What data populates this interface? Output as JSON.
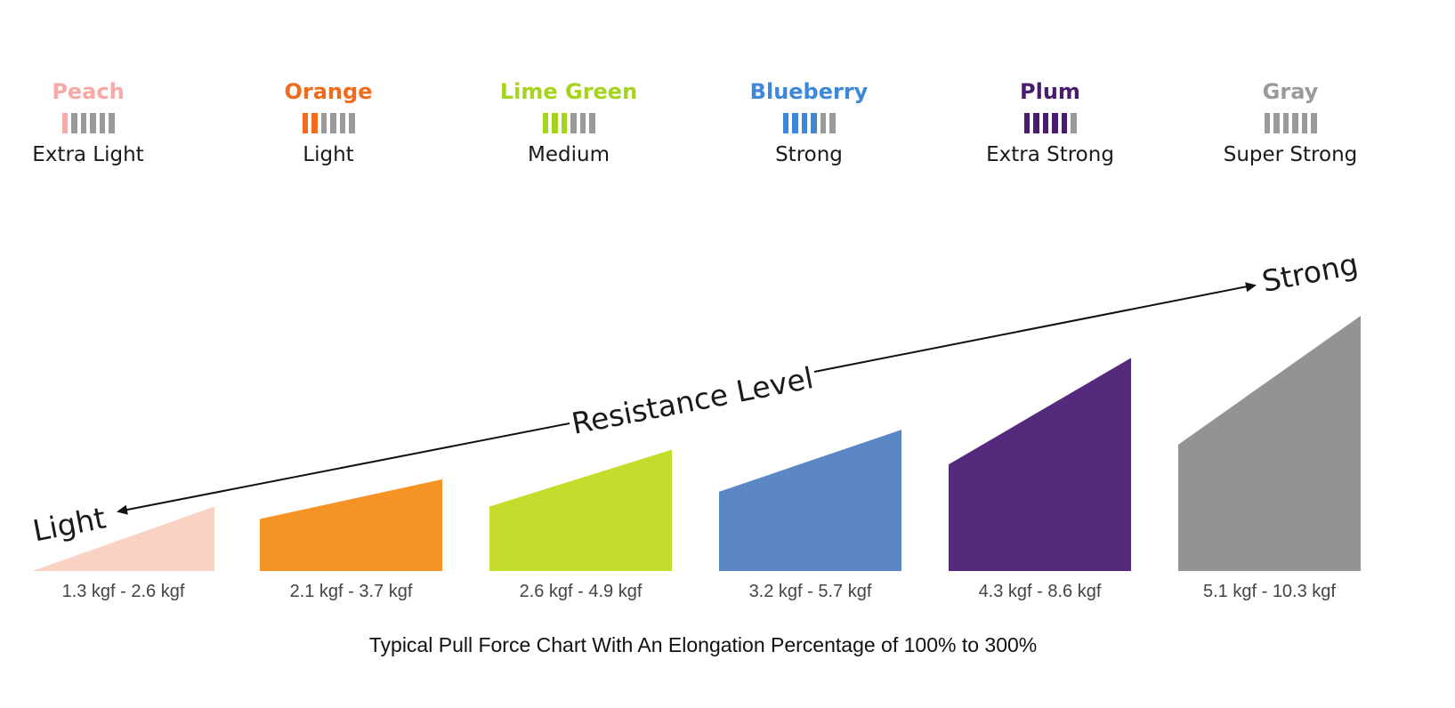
{
  "chart_data": {
    "type": "bar",
    "title": "",
    "caption": "Typical Pull Force Chart With An Elongation Percentage of 100% to 300%",
    "unit": "kgf",
    "axis_label": "Resistance Level",
    "axis_start_label": "Light",
    "axis_end_label": "Strong",
    "ylim": [
      0,
      10.3
    ],
    "grid": false,
    "legend_position": "top",
    "bars_total": 6,
    "categories": [
      "Extra Light",
      "Light",
      "Medium",
      "Strong",
      "Extra Strong",
      "Super Strong"
    ],
    "series": [
      {
        "color_name": "Peach",
        "level": "Extra Light",
        "range_label": "1.3 kgf - 2.6 kgf",
        "min": 1.3,
        "max": 2.6,
        "filled_bars": 1,
        "text_color": "#f7aaa5",
        "bar_color": "#f9d2c4"
      },
      {
        "color_name": "Orange",
        "level": "Light",
        "range_label": "2.1 kgf - 3.7 kgf",
        "min": 2.1,
        "max": 3.7,
        "filled_bars": 2,
        "text_color": "#f26b1d",
        "bar_color": "#f59324"
      },
      {
        "color_name": "Lime Green",
        "level": "Medium",
        "range_label": "2.6 kgf - 4.9 kgf",
        "min": 2.6,
        "max": 4.9,
        "filled_bars": 3,
        "text_color": "#a6d31c",
        "bar_color": "#c6dc2d"
      },
      {
        "color_name": "Blueberry",
        "level": "Strong",
        "range_label": "3.2 kgf - 5.7 kgf",
        "min": 3.2,
        "max": 5.7,
        "filled_bars": 4,
        "text_color": "#3f87d8",
        "bar_color": "#5b88c5"
      },
      {
        "color_name": "Plum",
        "level": "Extra Strong",
        "range_label": "4.3 kgf - 8.6 kgf",
        "min": 4.3,
        "max": 8.6,
        "filled_bars": 5,
        "text_color": "#4a1c6e",
        "bar_color": "#552a7d"
      },
      {
        "color_name": "Gray",
        "level": "Super Strong",
        "range_label": "5.1 kgf - 10.3 kgf",
        "min": 5.1,
        "max": 10.3,
        "filled_bars": 6,
        "text_color": "#9a9a9a",
        "bar_color": "#939396"
      }
    ],
    "empty_bar_color": "#9a9a9a",
    "arrow_color": "#111111"
  }
}
